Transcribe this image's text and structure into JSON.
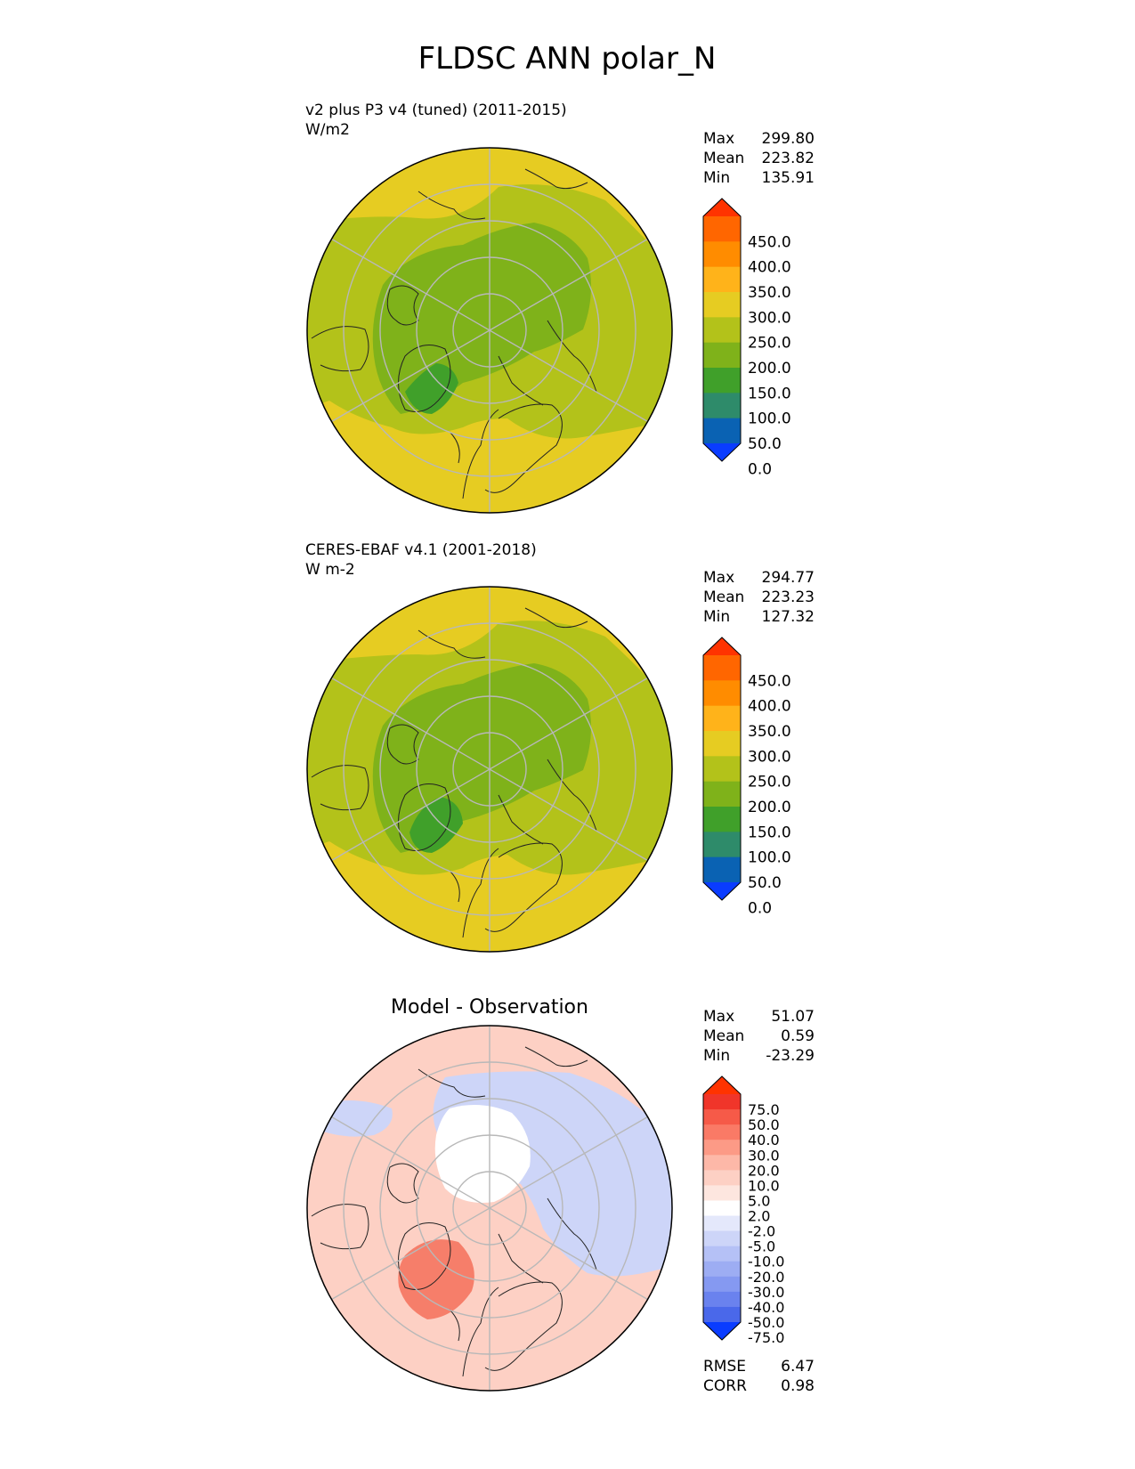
{
  "figure": {
    "title": "FLDSC ANN polar_N"
  },
  "panels": [
    {
      "id": "test",
      "title_line1": "v2 plus P3 v4 (tuned) (2011-2015)",
      "title_line2": "W/m2",
      "center_title": "",
      "stats": [
        {
          "label": "Max",
          "value": "299.80"
        },
        {
          "label": "Mean",
          "value": "223.82"
        },
        {
          "label": "Min",
          "value": "135.91"
        }
      ]
    },
    {
      "id": "reference",
      "title_line1": "CERES-EBAF v4.1 (2001-2018)",
      "title_line2": "W m-2",
      "center_title": "",
      "stats": [
        {
          "label": "Max",
          "value": "294.77"
        },
        {
          "label": "Mean",
          "value": "223.23"
        },
        {
          "label": "Min",
          "value": "127.32"
        }
      ]
    },
    {
      "id": "difference",
      "title_line1": "",
      "title_line2": "",
      "center_title": "Model - Observation",
      "stats": [
        {
          "label": "Max",
          "value": "51.07"
        },
        {
          "label": "Mean",
          "value": "0.59"
        },
        {
          "label": "Min",
          "value": "-23.29"
        }
      ],
      "metrics": [
        {
          "label": "RMSE",
          "value": "6.47"
        },
        {
          "label": "CORR",
          "value": "0.98"
        }
      ]
    }
  ],
  "chart_data": [
    {
      "type": "heatmap",
      "projection": "north-polar-stereographic",
      "title": "v2 plus P3 v4 (tuned) (2011-2015)",
      "units": "W/m2",
      "colorbar": {
        "ticks": [
          "450.0",
          "400.0",
          "350.0",
          "300.0",
          "250.0",
          "200.0",
          "150.0",
          "100.0",
          "50.0",
          "0.0"
        ],
        "colors": [
          "#ff3300",
          "#ff6600",
          "#ff8c00",
          "#ffb31a",
          "#e6cc22",
          "#b3c21a",
          "#7fb21a",
          "#40a02a",
          "#2e8b6a",
          "#0a62b3",
          "#0a3cff"
        ],
        "extend": "both"
      },
      "fields": {
        "ocean_color": "#e6cc22",
        "land_color": "#b3c21a",
        "inner_color": "#7fb21a",
        "greenland_color": "#40a02a"
      },
      "stats": {
        "max": 299.8,
        "mean": 223.82,
        "min": 135.91
      }
    },
    {
      "type": "heatmap",
      "projection": "north-polar-stereographic",
      "title": "CERES-EBAF v4.1 (2001-2018)",
      "units": "W m-2",
      "colorbar": {
        "ticks": [
          "450.0",
          "400.0",
          "350.0",
          "300.0",
          "250.0",
          "200.0",
          "150.0",
          "100.0",
          "50.0",
          "0.0"
        ],
        "colors": [
          "#ff3300",
          "#ff6600",
          "#ff8c00",
          "#ffb31a",
          "#e6cc22",
          "#b3c21a",
          "#7fb21a",
          "#40a02a",
          "#2e8b6a",
          "#0a62b3",
          "#0a3cff"
        ],
        "extend": "both"
      },
      "fields": {
        "ocean_color": "#e6cc22",
        "land_color": "#b3c21a",
        "inner_color": "#7fb21a",
        "greenland_color": "#40a02a"
      },
      "stats": {
        "max": 294.77,
        "mean": 223.23,
        "min": 127.32
      }
    },
    {
      "type": "heatmap",
      "projection": "north-polar-stereographic",
      "title": "Model - Observation",
      "colorbar": {
        "ticks": [
          "75.0",
          "50.0",
          "40.0",
          "30.0",
          "20.0",
          "10.0",
          "5.0",
          "2.0",
          "-2.0",
          "-5.0",
          "-10.0",
          "-20.0",
          "-30.0",
          "-40.0",
          "-50.0",
          "-75.0"
        ],
        "colors": [
          "#ff3300",
          "#f0352a",
          "#f65a48",
          "#fa7a66",
          "#fc9a86",
          "#fdb8a8",
          "#fdd0c4",
          "#fde6df",
          "#ffffff",
          "#e4e8fb",
          "#cdd5f8",
          "#b5c1f6",
          "#9dadf3",
          "#8599f1",
          "#6a82ee",
          "#4a68ea",
          "#0a3cff"
        ],
        "extend": "both"
      },
      "fields": {
        "positive_color": "#fdd0c4",
        "negative_color": "#cdd5f8",
        "strong_positive_color": "#f67e6a"
      },
      "stats": {
        "max": 51.07,
        "mean": 0.59,
        "min": -23.29,
        "rmse": 6.47,
        "corr": 0.98
      }
    }
  ]
}
